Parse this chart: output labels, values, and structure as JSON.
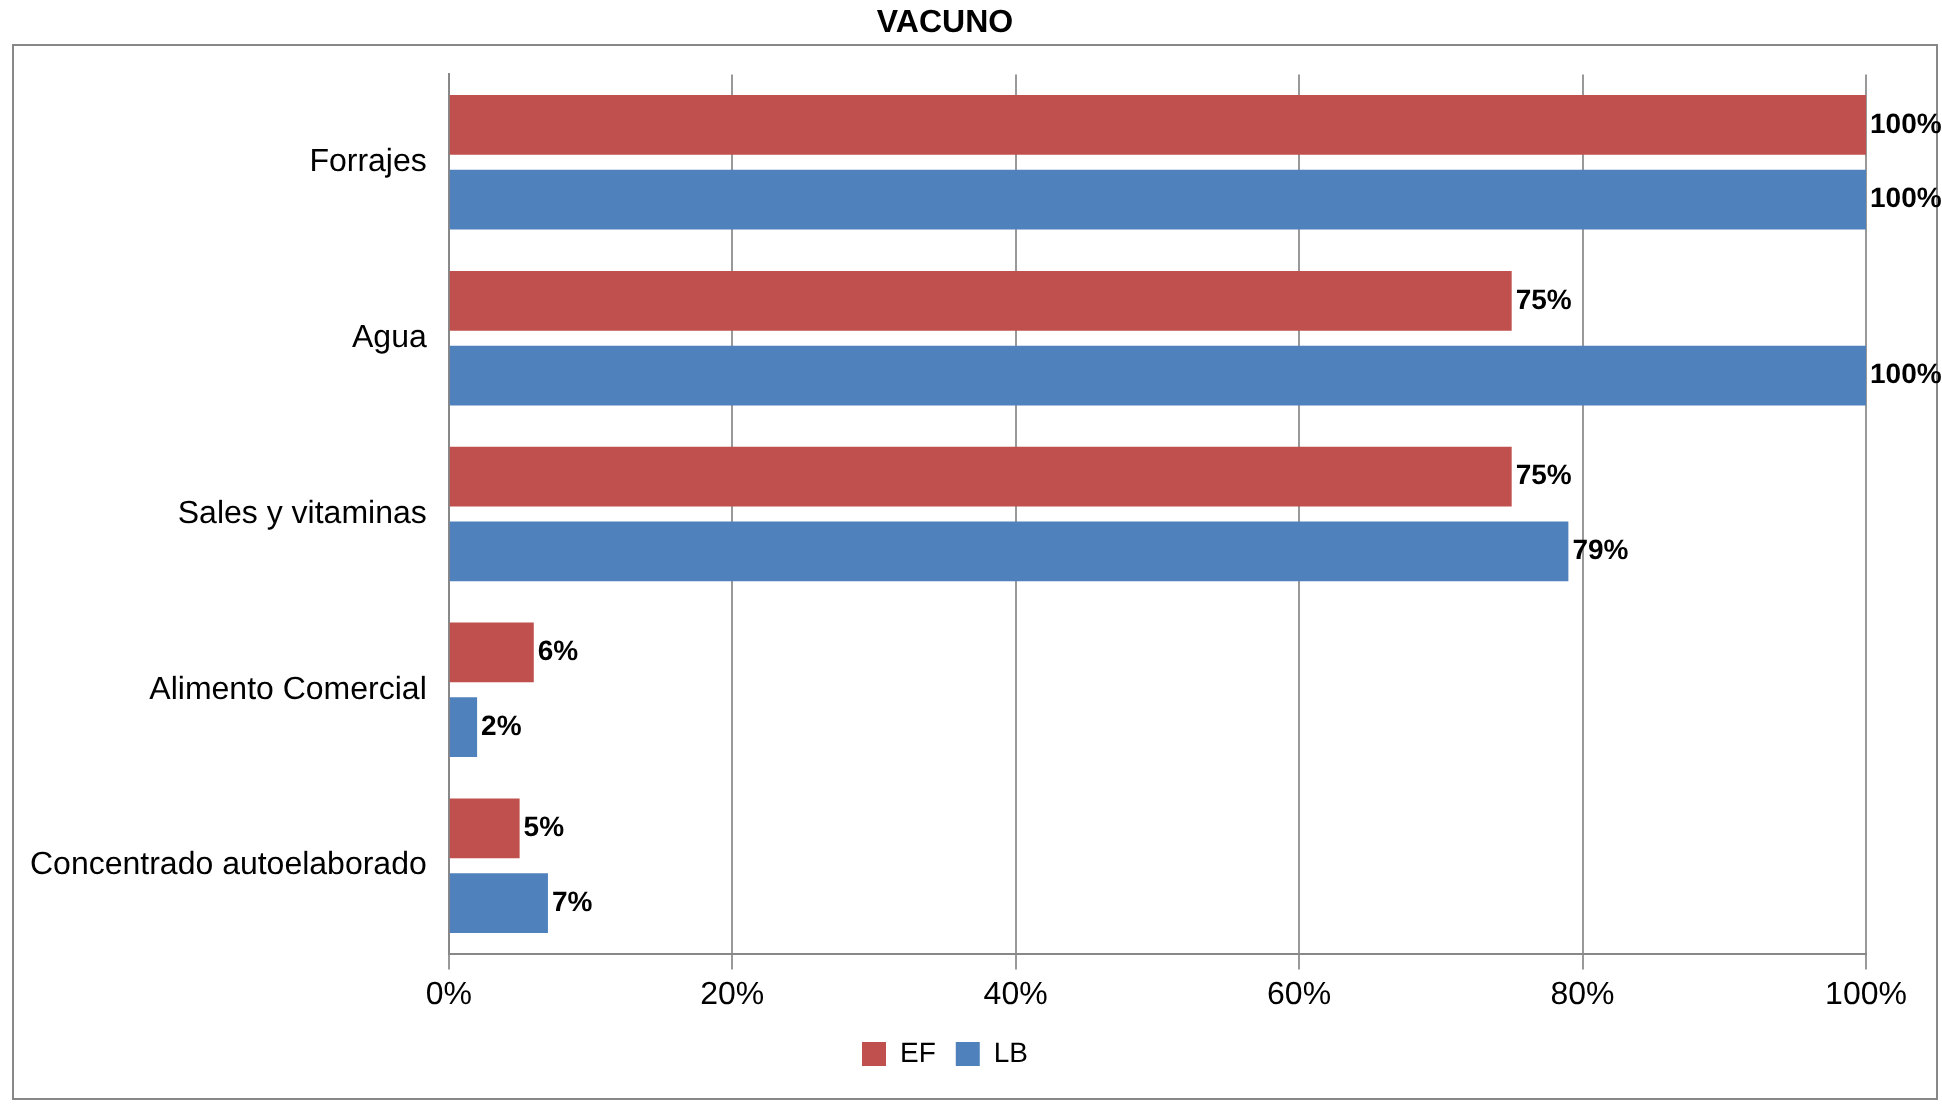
{
  "chart_data": {
    "type": "bar",
    "orientation": "horizontal",
    "title": "VACUNO",
    "categories": [
      "Forrajes",
      "Agua",
      "Sales y vitaminas",
      "Alimento Comercial",
      "Concentrado autoelaborado"
    ],
    "series": [
      {
        "name": "EF",
        "color": "#c0504d",
        "values": [
          100,
          75,
          75,
          6,
          5
        ],
        "value_labels": [
          "100%",
          "75%",
          "75%",
          "6%",
          "5%"
        ]
      },
      {
        "name": "LB",
        "color": "#4f81bd",
        "values": [
          100,
          100,
          79,
          2,
          7
        ],
        "value_labels": [
          "100%",
          "100%",
          "79%",
          "2%",
          "7%"
        ]
      }
    ],
    "xlim": [
      0,
      100
    ],
    "xticks": [
      {
        "value": 0,
        "label": "0%"
      },
      {
        "value": 20,
        "label": "20%"
      },
      {
        "value": 40,
        "label": "40%"
      },
      {
        "value": 60,
        "label": "60%"
      },
      {
        "value": 80,
        "label": "80%"
      },
      {
        "value": 100,
        "label": "100%"
      }
    ],
    "grid": "x",
    "legend": "bottom"
  }
}
